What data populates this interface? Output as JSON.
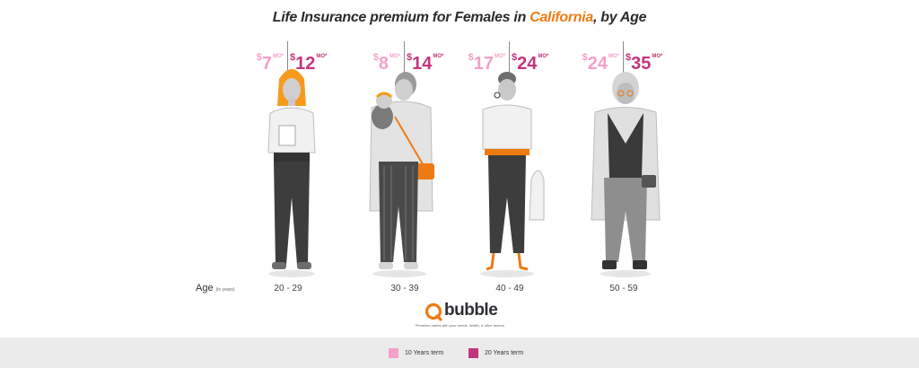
{
  "title": {
    "prefix": "Life Insurance premium for Females in ",
    "highlight": "California",
    "suffix": ", by Age"
  },
  "colors": {
    "term10": "#f4a0cb",
    "term20": "#c3357c",
    "highlight": "#f07a12"
  },
  "chart_data": {
    "type": "bar",
    "title": "Life Insurance premium for Females in California, by Age",
    "xlabel": "Age (in years)",
    "currency_symbol": "$",
    "unit": "MO*",
    "categories": [
      "20 - 29",
      "30 - 39",
      "40 - 49",
      "50 - 59"
    ],
    "series": [
      {
        "name": "10 Years term",
        "values": [
          7,
          8,
          17,
          24
        ]
      },
      {
        "name": "20 Years term",
        "values": [
          12,
          14,
          24,
          35
        ]
      }
    ],
    "legend": "bottom"
  },
  "age_axis": {
    "label": "Age",
    "sublabel": "(in years)"
  },
  "logo": {
    "text": "bubble"
  },
  "footnote": "*Premium varies with your needs, health, & other factors",
  "legend": [
    {
      "label": "10 Years term"
    },
    {
      "label": "20 Years term"
    }
  ]
}
